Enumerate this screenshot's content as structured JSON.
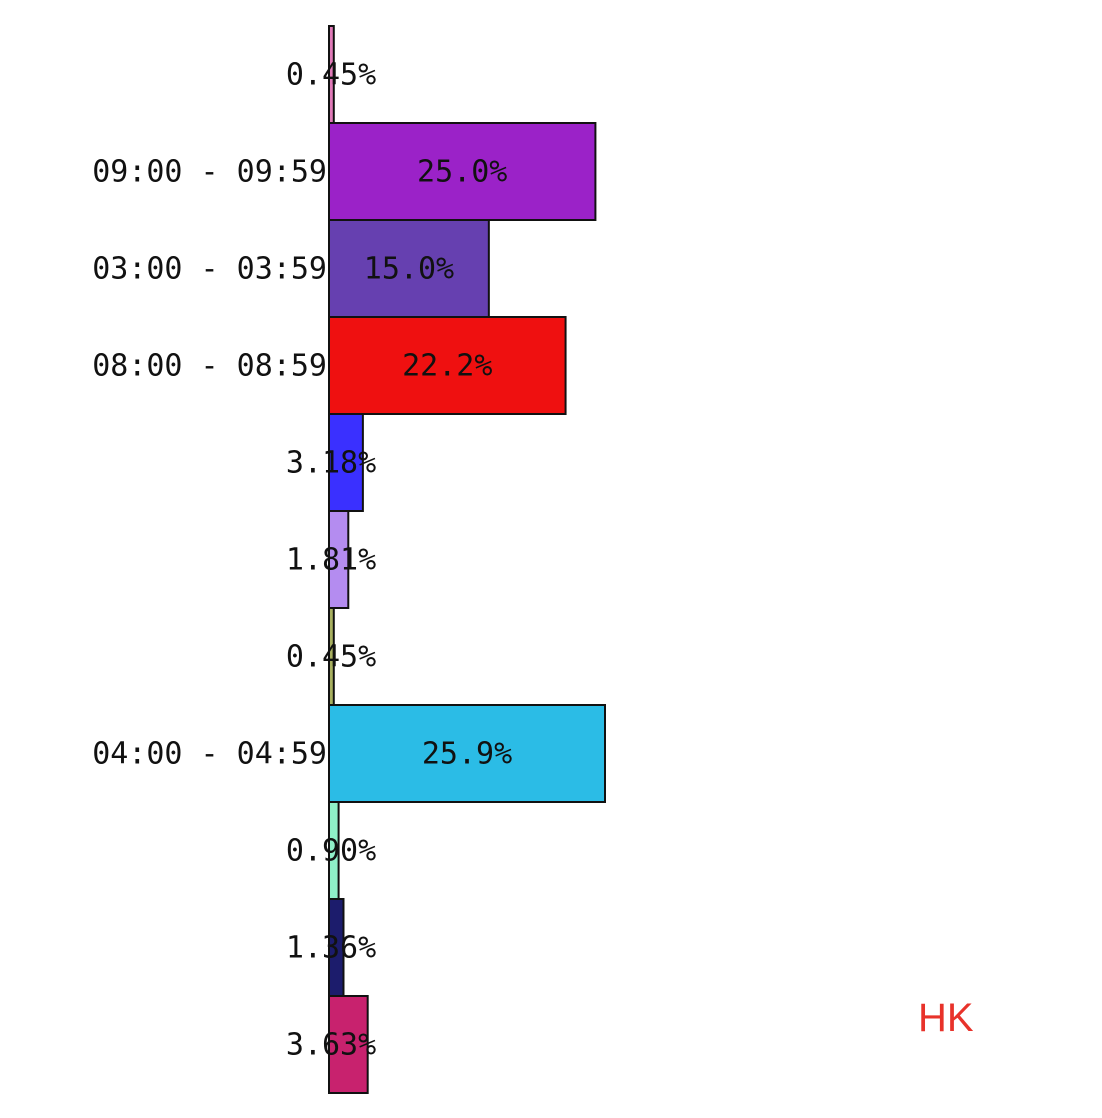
{
  "chart_data": {
    "type": "bar",
    "orientation": "horizontal",
    "categories": [
      "",
      "09:00 - 09:59",
      "03:00 - 03:59",
      "08:00 - 08:59",
      "",
      "",
      "",
      "04:00 - 04:59",
      "",
      "",
      ""
    ],
    "values": [
      0.45,
      25.0,
      15.0,
      22.2,
      3.18,
      1.81,
      0.45,
      25.9,
      0.9,
      1.36,
      3.63
    ],
    "value_labels": [
      "0.45%",
      "25.0%",
      "15.0%",
      "22.2%",
      "3.18%",
      "1.81%",
      "0.45%",
      "25.9%",
      "0.90%",
      "1.36%",
      "3.63%"
    ],
    "colors": [
      "#e07ab8",
      "#9b22c8",
      "#6640b0",
      "#ef1010",
      "#3a30ff",
      "#b48cf0",
      "#a8b060",
      "#2bbce6",
      "#8ff0c8",
      "#1c1c6c",
      "#c8226e"
    ],
    "xlim": [
      0,
      26.5
    ],
    "grid": false,
    "legend": "none"
  },
  "corner_label": {
    "text": "HK",
    "color": "#e8322a"
  }
}
